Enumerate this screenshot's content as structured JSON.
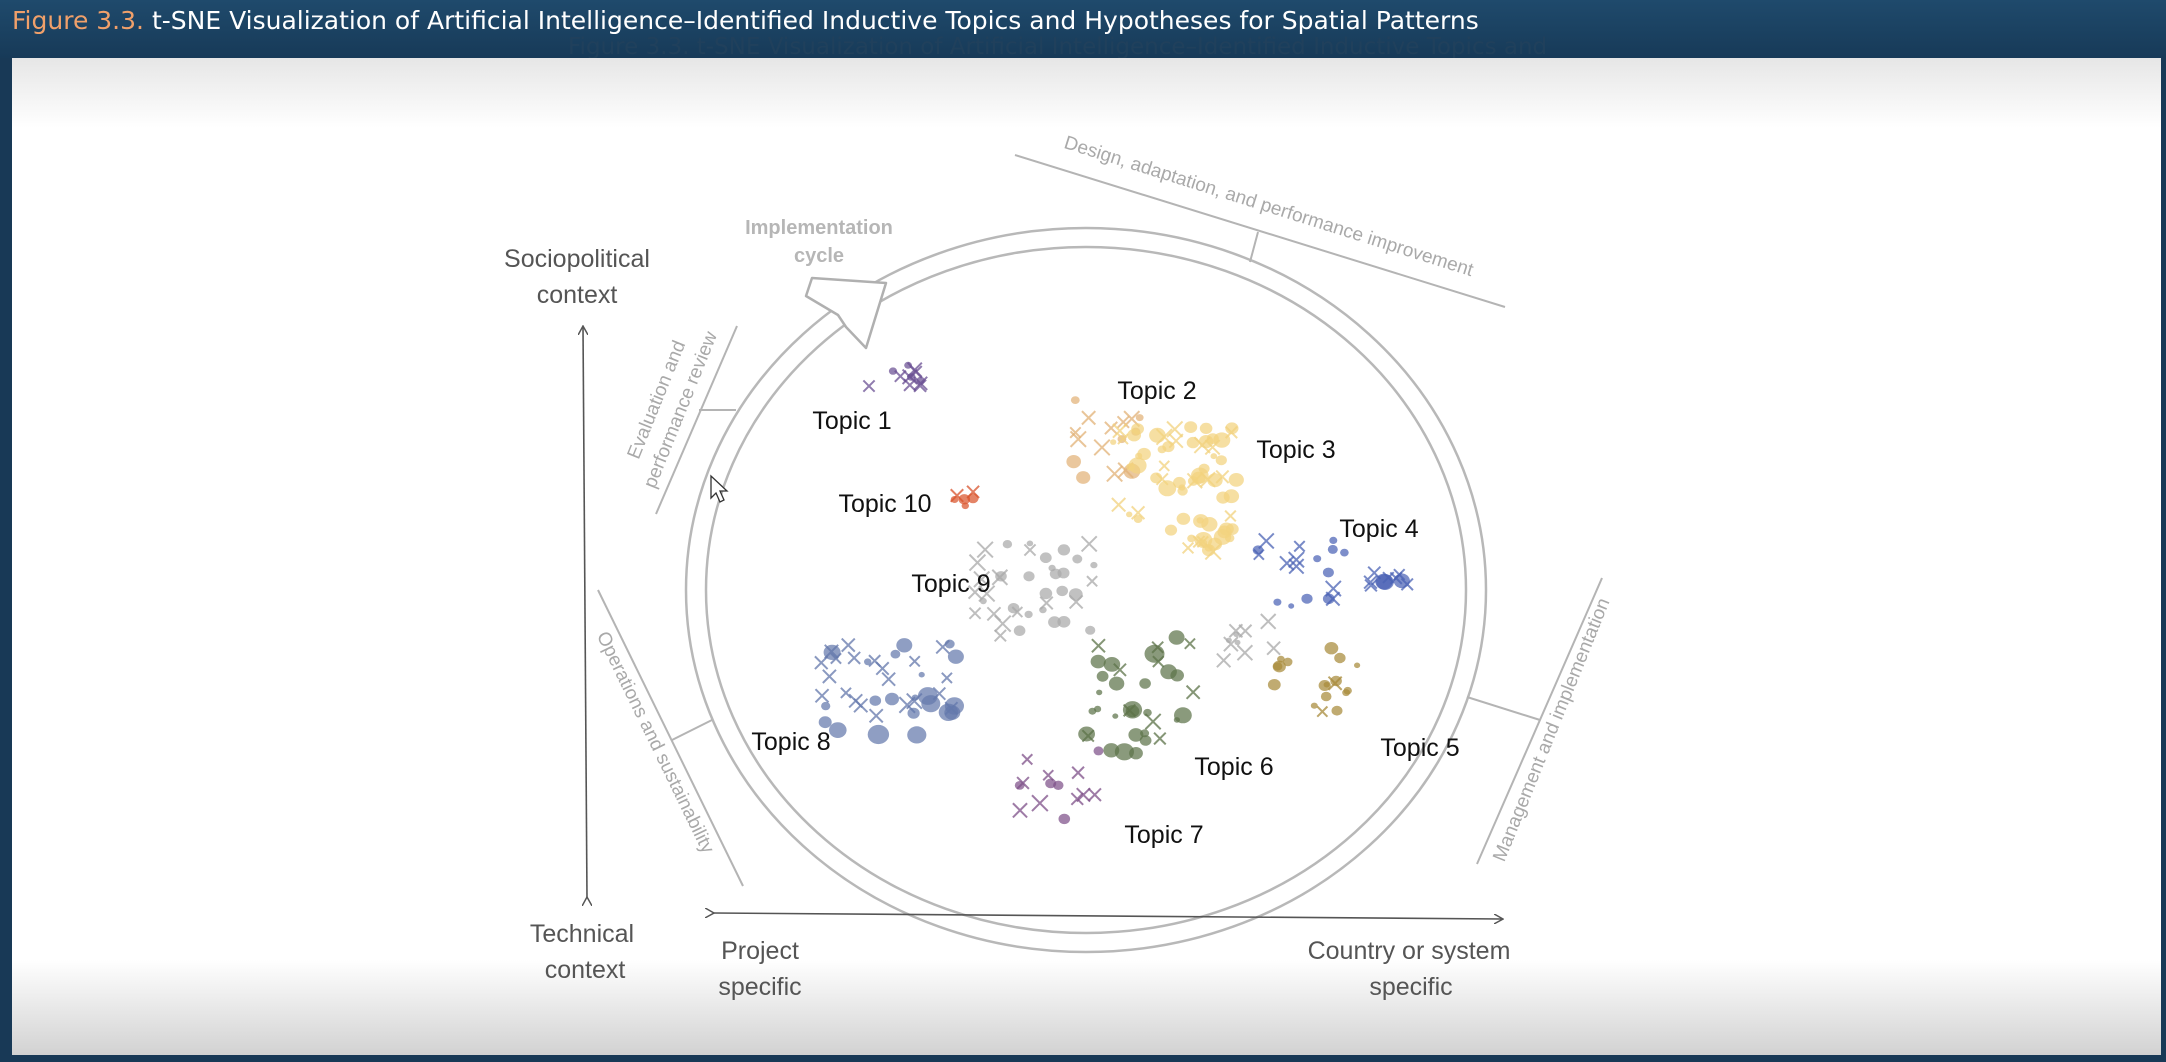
{
  "header": {
    "figure_number": "Figure 3.3.",
    "title": "t-SNE Visualization of Artificial Intelligence–Identified Inductive Topics and Hypotheses for Spatial Patterns",
    "ghost_title": "Figure 3.3. t-SNE Visualization of Artificial Intelligence–Identified Inductive Topics and"
  },
  "diagram": {
    "cycle_label_line1": "Implementation",
    "cycle_label_line2": "cycle",
    "phases": {
      "design": "Design, adaptation, and performance improvement",
      "management": "Management and implementation",
      "operations": "Operations and sustainability",
      "evaluation_line1": "Evaluation and",
      "evaluation_line2": "performance review"
    },
    "vertical_axis": {
      "top_line1": "Sociopolitical",
      "top_line2": "context",
      "bottom_line1": "Technical",
      "bottom_line2": "context"
    },
    "horizontal_axis": {
      "left_line1": "Project",
      "left_line2": "specific",
      "right_line1": "Country or system",
      "right_line2": "specific"
    },
    "topics": [
      {
        "label": "Topic 1",
        "color": "#6a4f93"
      },
      {
        "label": "Topic 2",
        "color": "#e2b277"
      },
      {
        "label": "Topic 3",
        "color": "#f2d27e"
      },
      {
        "label": "Topic 4",
        "color": "#4b63b5"
      },
      {
        "label": "Topic 5",
        "color": "#a88a3a"
      },
      {
        "label": "Topic 6",
        "color": "#5d7349"
      },
      {
        "label": "Topic 7",
        "color": "#7e5089"
      },
      {
        "label": "Topic 8",
        "color": "#6478ac"
      },
      {
        "label": "Topic 9",
        "color": "#a9a9a9"
      },
      {
        "label": "Topic 10",
        "color": "#d9542d"
      }
    ]
  }
}
